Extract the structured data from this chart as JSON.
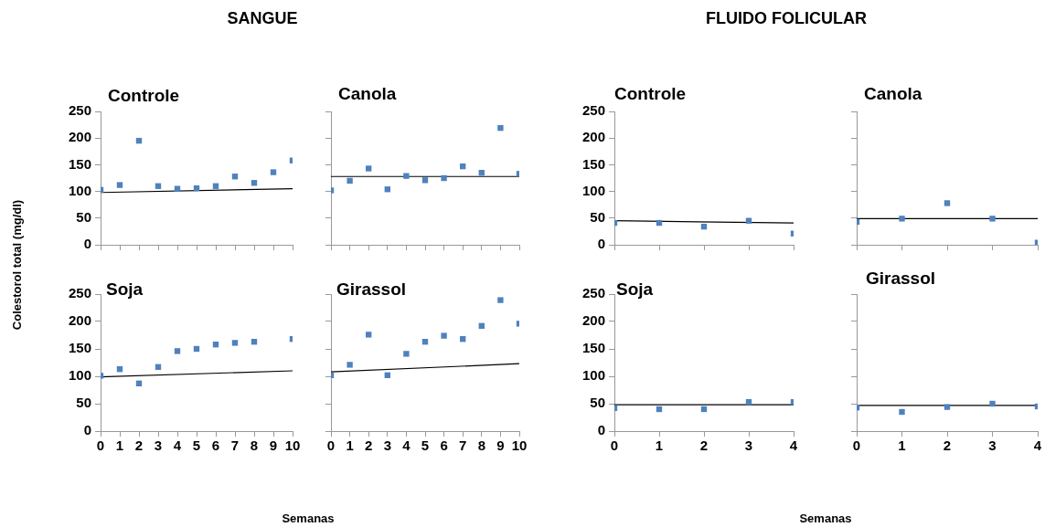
{
  "chart_data": [
    {
      "type": "scatter",
      "title": "Controle",
      "annotations": [
        "SANGUE"
      ],
      "ylabel": "Colestorol total (mg/dl)",
      "marker": "square",
      "tick_labels": "y",
      "xlim": [
        0,
        10
      ],
      "xticks": [
        0,
        1,
        2,
        3,
        4,
        5,
        6,
        7,
        8,
        9,
        10
      ],
      "ylim": [
        0,
        250
      ],
      "yticks": [
        0,
        50,
        100,
        150,
        200,
        250
      ],
      "x": [
        0,
        1,
        2,
        3,
        4,
        5,
        6,
        7,
        8,
        9,
        10
      ],
      "series": [
        {
          "color": "#4f81bd",
          "values": [
            103,
            112,
            195,
            110,
            105,
            106,
            110,
            128,
            116,
            136,
            158
          ]
        },
        {
          "type": "line",
          "marker": "none",
          "color": "#000000",
          "x": [
            0,
            10
          ],
          "values": [
            98,
            105
          ]
        }
      ]
    },
    {
      "type": "scatter",
      "title": "Soja",
      "marker": "square",
      "xlabel": "Semanas",
      "xlim": [
        0,
        10
      ],
      "xticks": [
        0,
        1,
        2,
        3,
        4,
        5,
        6,
        7,
        8,
        9,
        10
      ],
      "ylim": [
        0,
        250
      ],
      "yticks": [
        0,
        50,
        100,
        150,
        200,
        250
      ],
      "x": [
        0,
        1,
        2,
        3,
        4,
        5,
        6,
        7,
        8,
        10
      ],
      "series": [
        {
          "color": "#4f81bd",
          "values": [
            101,
            113,
            87,
            117,
            146,
            150,
            158,
            161,
            163,
            168
          ]
        },
        {
          "type": "line",
          "marker": "none",
          "color": "#000000",
          "x": [
            0,
            10
          ],
          "values": [
            99,
            110
          ]
        }
      ]
    },
    {
      "type": "scatter",
      "title": "Canola",
      "marker": "square",
      "tick_labels": false,
      "xlim": [
        0,
        10
      ],
      "xticks": [
        0,
        1,
        2,
        3,
        4,
        5,
        6,
        7,
        8,
        9,
        10
      ],
      "ylim": [
        0,
        250
      ],
      "yticks": [
        0,
        50,
        100,
        150,
        200,
        250
      ],
      "x": [
        0,
        1,
        2,
        3,
        4,
        5,
        6,
        7,
        8,
        9,
        10
      ],
      "series": [
        {
          "color": "#4f81bd",
          "values": [
            102,
            120,
            143,
            104,
            129,
            121,
            125,
            147,
            135,
            219,
            133
          ]
        },
        {
          "type": "line",
          "marker": "none",
          "color": "#000000",
          "x": [
            0,
            10
          ],
          "values": [
            128,
            128
          ]
        }
      ]
    },
    {
      "type": "scatter",
      "title": "Girassol",
      "marker": "square",
      "tick_labels": "x",
      "xlim": [
        0,
        10
      ],
      "xticks": [
        0,
        1,
        2,
        3,
        4,
        5,
        6,
        7,
        8,
        9,
        10
      ],
      "ylim": [
        0,
        250
      ],
      "yticks": [
        0,
        50,
        100,
        150,
        200,
        250
      ],
      "x": [
        0,
        1,
        2,
        3,
        4,
        5,
        6,
        7,
        8,
        9,
        10
      ],
      "series": [
        {
          "color": "#4f81bd",
          "values": [
            102,
            121,
            176,
            102,
            141,
            163,
            174,
            168,
            192,
            239,
            196
          ]
        },
        {
          "type": "line",
          "marker": "none",
          "color": "#000000",
          "x": [
            0,
            10
          ],
          "values": [
            108,
            123
          ]
        }
      ]
    },
    {
      "type": "scatter",
      "title": "Controle",
      "annotations": [
        "FLUIDO FOLICULAR"
      ],
      "marker": "square",
      "tick_labels": "y",
      "xlim": [
        0,
        4
      ],
      "xticks": [
        0,
        1,
        2,
        3,
        4
      ],
      "ylim": [
        0,
        250
      ],
      "yticks": [
        0,
        50,
        100,
        150,
        200,
        250
      ],
      "x": [
        0,
        1,
        2,
        3,
        4
      ],
      "series": [
        {
          "color": "#4f81bd",
          "values": [
            41,
            41,
            34,
            45,
            21
          ]
        },
        {
          "type": "line",
          "marker": "none",
          "color": "#000000",
          "x": [
            0,
            4
          ],
          "values": [
            45,
            41
          ]
        }
      ]
    },
    {
      "type": "scatter",
      "title": "Soja",
      "marker": "square",
      "xlabel": "Semanas",
      "xlim": [
        0,
        4
      ],
      "xticks": [
        0,
        1,
        2,
        3,
        4
      ],
      "ylim": [
        0,
        250
      ],
      "yticks": [
        0,
        50,
        100,
        150,
        200,
        250
      ],
      "x": [
        0,
        1,
        2,
        3,
        4
      ],
      "series": [
        {
          "color": "#4f81bd",
          "values": [
            42,
            40,
            40,
            53,
            53
          ]
        },
        {
          "type": "line",
          "marker": "none",
          "color": "#000000",
          "x": [
            0,
            4
          ],
          "values": [
            48,
            48
          ]
        }
      ]
    },
    {
      "type": "scatter",
      "title": "Canola",
      "marker": "square",
      "tick_labels": false,
      "xlim": [
        0,
        4
      ],
      "xticks": [
        0,
        1,
        2,
        3,
        4
      ],
      "ylim": [
        0,
        250
      ],
      "yticks": [
        0,
        50,
        100,
        150,
        200,
        250
      ],
      "x": [
        0,
        1,
        2,
        3,
        4
      ],
      "series": [
        {
          "color": "#4f81bd",
          "values": [
            43,
            49,
            78,
            49,
            4
          ]
        },
        {
          "type": "line",
          "marker": "none",
          "color": "#000000",
          "x": [
            0,
            4
          ],
          "values": [
            49,
            49
          ]
        }
      ]
    },
    {
      "type": "scatter",
      "title": "Girassol",
      "marker": "square",
      "tick_labels": "x",
      "xlim": [
        0,
        4
      ],
      "xticks": [
        0,
        1,
        2,
        3,
        4
      ],
      "ylim": [
        0,
        250
      ],
      "yticks": [
        0,
        50,
        100,
        150,
        200,
        250
      ],
      "x": [
        0,
        1,
        2,
        3,
        4
      ],
      "series": [
        {
          "color": "#4f81bd",
          "values": [
            43,
            35,
            44,
            50,
            45
          ]
        },
        {
          "type": "line",
          "marker": "none",
          "color": "#000000",
          "x": [
            0,
            4
          ],
          "values": [
            47,
            47
          ]
        }
      ]
    }
  ]
}
